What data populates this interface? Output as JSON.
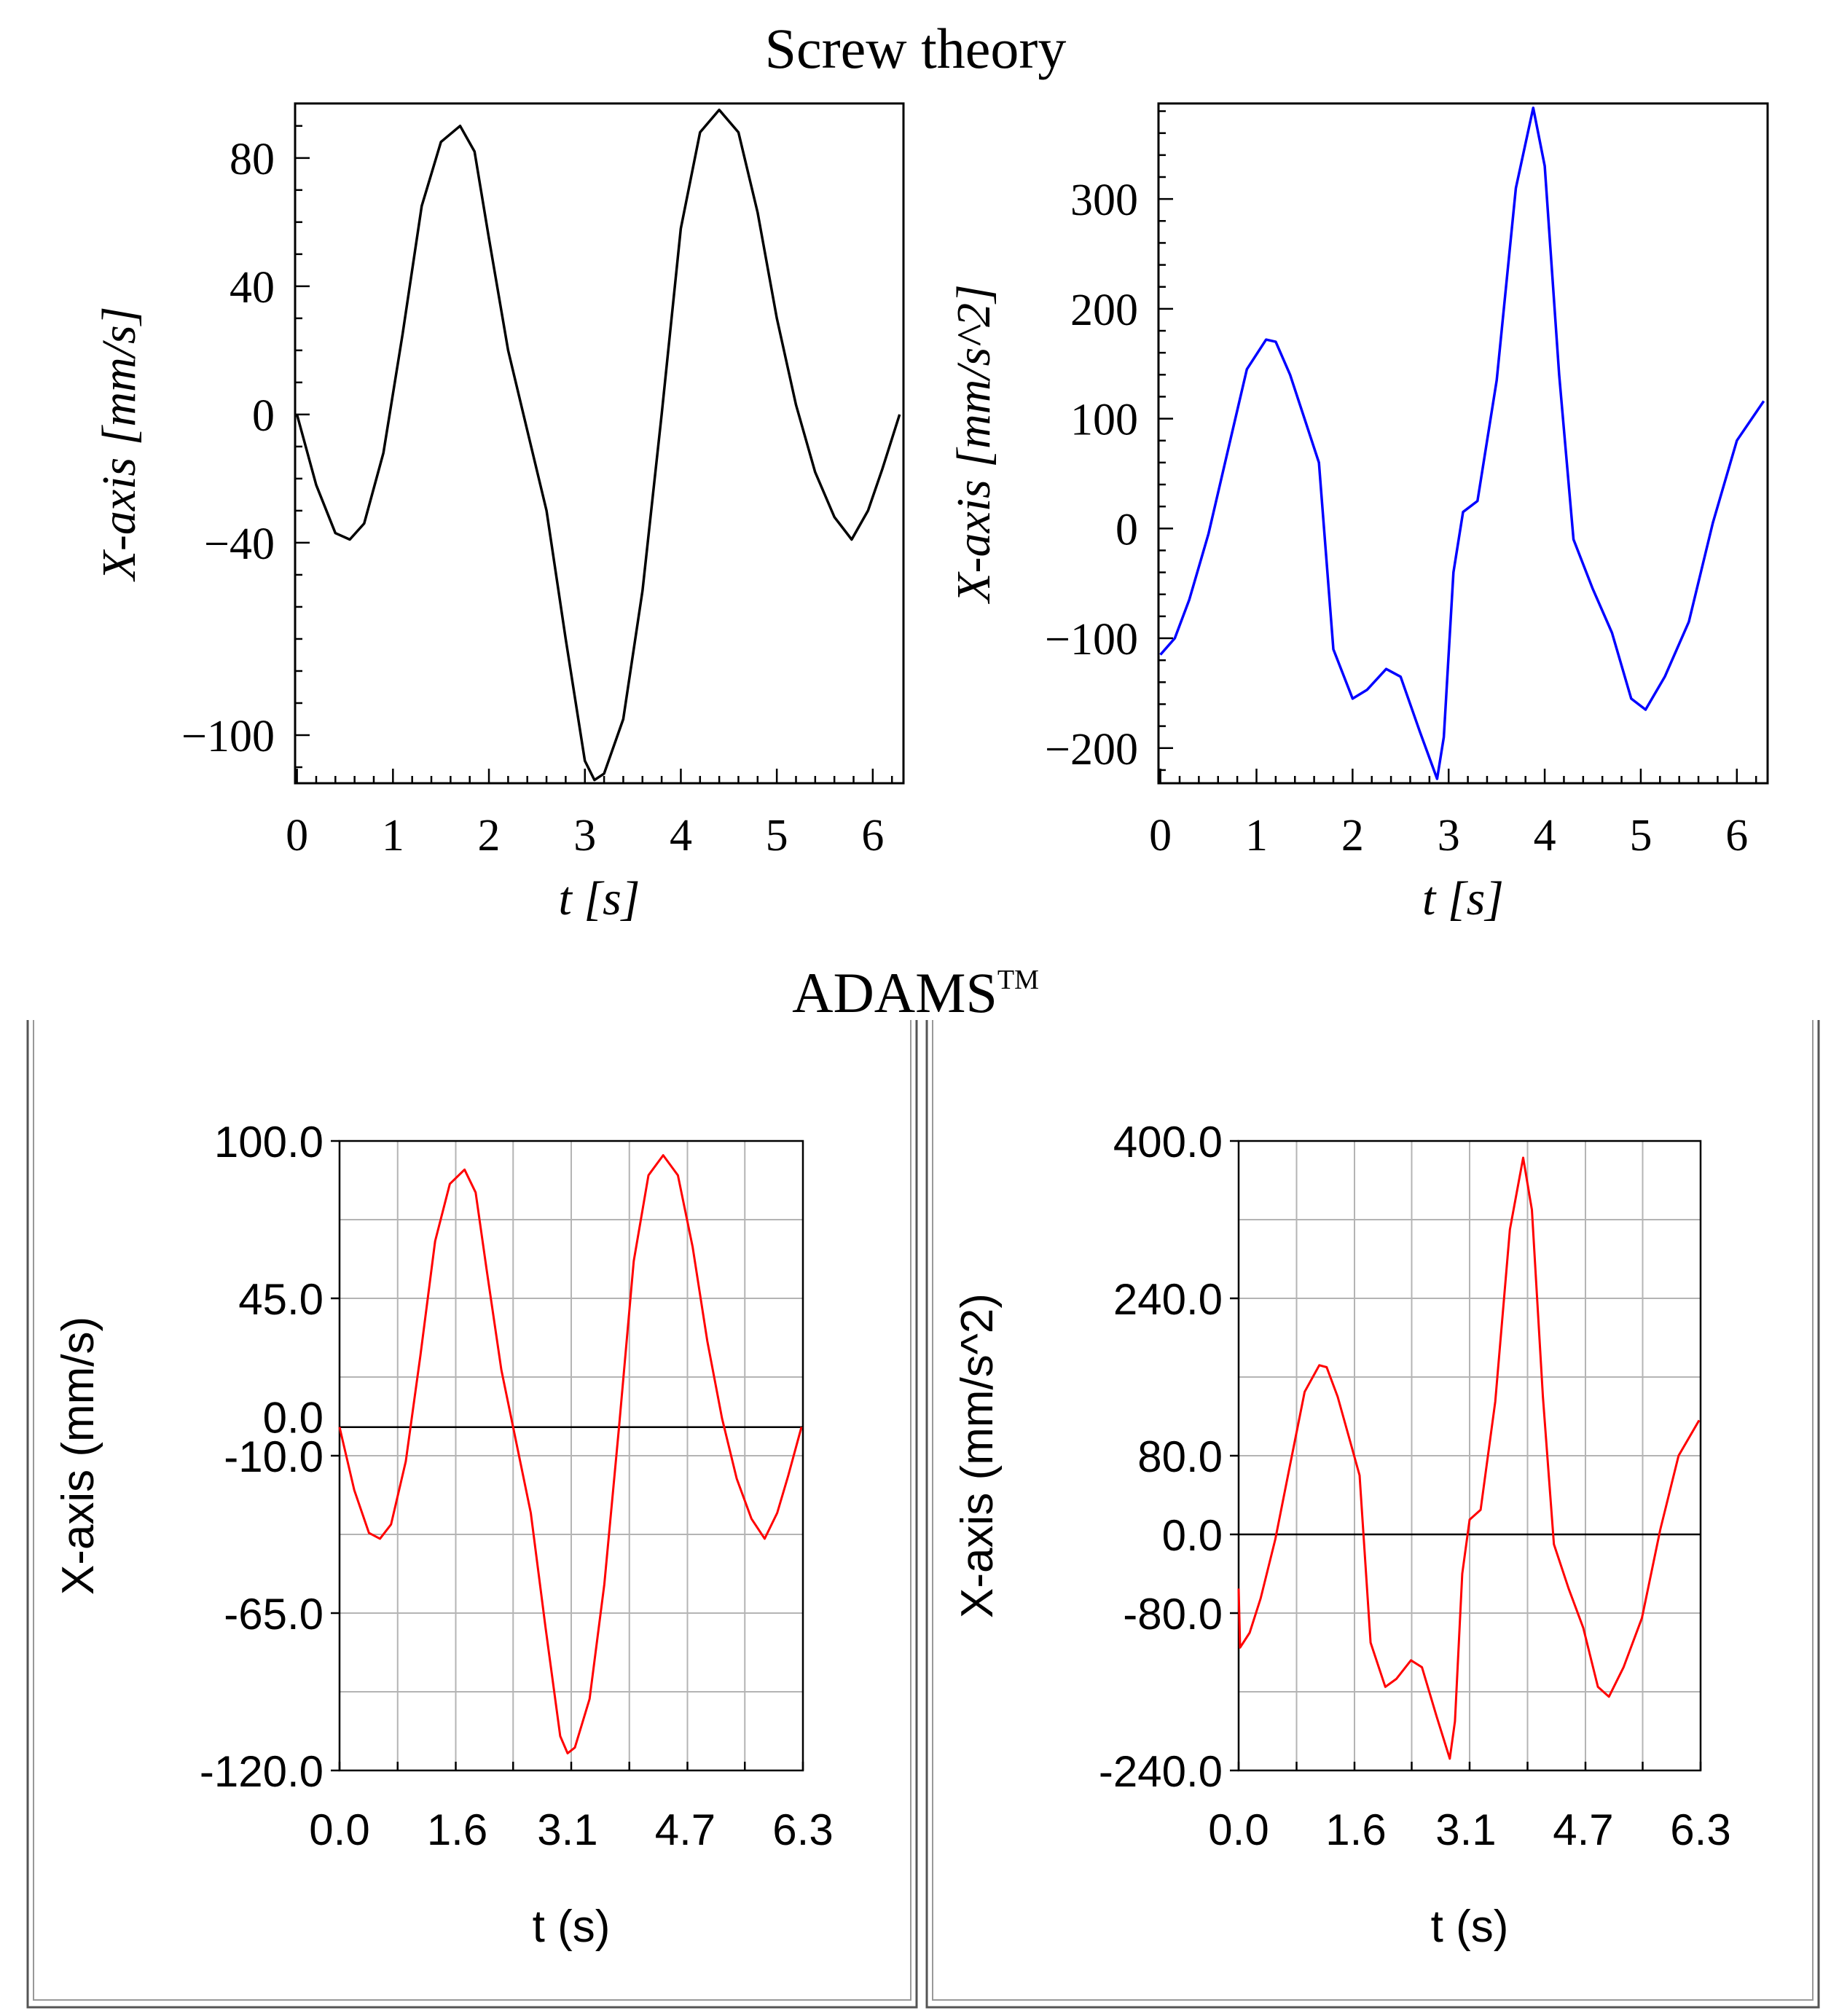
{
  "headings": {
    "screw": "Screw theory",
    "adams_main": "ADAMS",
    "adams_tm": "TM"
  },
  "colors": {
    "black_curve": "#000000",
    "blue_curve": "#0000ff",
    "red_curve": "#ff0000",
    "grid": "#b4b4b4",
    "axis": "#000000"
  },
  "chart_data": [
    {
      "id": "screw-velocity",
      "type": "line",
      "style": "serif",
      "title": "",
      "xlabel": "t [s]",
      "ylabel": "X-axis [mm/s]",
      "xlim": [
        -0.02,
        6.32
      ],
      "ylim": [
        -115,
        97
      ],
      "xticks": [
        0,
        1,
        2,
        3,
        4,
        5,
        6
      ],
      "xtick_labels": [
        "0",
        "1",
        "2",
        "3",
        "4",
        "5",
        "6"
      ],
      "yticks": [
        80,
        40,
        0,
        -40,
        -100
      ],
      "ytick_labels": [
        "80",
        "40",
        "0",
        "−40",
        "−100"
      ],
      "grid": false,
      "color": "#000000",
      "x": [
        0,
        0.2,
        0.4,
        0.55,
        0.7,
        0.9,
        1.1,
        1.3,
        1.5,
        1.7,
        1.85,
        2.0,
        2.2,
        2.4,
        2.6,
        2.8,
        3.0,
        3.1,
        3.2,
        3.4,
        3.6,
        3.8,
        4.0,
        4.2,
        4.4,
        4.6,
        4.8,
        5.0,
        5.2,
        5.4,
        5.6,
        5.78,
        5.95,
        6.1,
        6.28
      ],
      "y": [
        0,
        -22,
        -37,
        -39,
        -34,
        -12,
        25,
        65,
        85,
        90,
        82,
        55,
        20,
        -5,
        -30,
        -70,
        -108,
        -114,
        -112,
        -95,
        -55,
        0,
        58,
        88,
        95,
        88,
        63,
        30,
        3,
        -18,
        -32,
        -39,
        -30,
        -17,
        0
      ]
    },
    {
      "id": "screw-acceleration",
      "type": "line",
      "style": "serif",
      "title": "",
      "xlabel": "t [s]",
      "ylabel": "X-axis [mm/s^2]",
      "xlim": [
        -0.02,
        6.32
      ],
      "ylim": [
        -232,
        387
      ],
      "xticks": [
        0,
        1,
        2,
        3,
        4,
        5,
        6
      ],
      "xtick_labels": [
        "0",
        "1",
        "2",
        "3",
        "4",
        "5",
        "6"
      ],
      "yticks": [
        300,
        200,
        100,
        0,
        -100,
        -200
      ],
      "ytick_labels": [
        "300",
        "200",
        "100",
        "0",
        "−100",
        "−200"
      ],
      "grid": false,
      "color": "#0000ff",
      "x": [
        0,
        0.15,
        0.3,
        0.5,
        0.7,
        0.9,
        1.1,
        1.2,
        1.35,
        1.5,
        1.65,
        1.8,
        2.0,
        2.15,
        2.35,
        2.5,
        2.7,
        2.88,
        2.95,
        3.05,
        3.15,
        3.3,
        3.5,
        3.7,
        3.88,
        4.0,
        4.15,
        4.3,
        4.5,
        4.7,
        4.9,
        5.05,
        5.25,
        5.5,
        5.75,
        6.0,
        6.28
      ],
      "y": [
        -115,
        -100,
        -65,
        -5,
        70,
        145,
        172,
        170,
        140,
        100,
        60,
        -110,
        -155,
        -147,
        -128,
        -135,
        -185,
        -228,
        -190,
        -40,
        15,
        25,
        135,
        310,
        383,
        330,
        140,
        -10,
        -55,
        -95,
        -155,
        -165,
        -135,
        -85,
        5,
        80,
        116
      ]
    },
    {
      "id": "adams-velocity",
      "type": "line",
      "style": "sans",
      "title": "",
      "xlabel": "t (s)",
      "ylabel": "X-axis (mm/s)",
      "xlim": [
        0,
        6.3
      ],
      "ylim": [
        -120,
        100
      ],
      "xticks": [
        0,
        1.6,
        3.1,
        4.7,
        6.3
      ],
      "xtick_labels": [
        "0.0",
        "1.6",
        "3.1",
        "4.7",
        "6.3"
      ],
      "yticks": [
        100,
        45,
        -10,
        -65,
        -120
      ],
      "ytick_labels": [
        "100.0",
        "45.0",
        "-10.0",
        "-65.0",
        "-120.0"
      ],
      "extra_ytick_labels": [
        {
          "value": 0,
          "label": "0.0"
        }
      ],
      "xgrid": [
        0,
        0.79,
        1.58,
        2.36,
        3.15,
        3.94,
        4.73,
        5.51,
        6.3
      ],
      "ygrid": [
        100,
        72.5,
        45,
        17.5,
        -10,
        -37.5,
        -65,
        -92.5,
        -120
      ],
      "grid": true,
      "zero_line": true,
      "color": "#ff0000",
      "x": [
        0,
        0.2,
        0.4,
        0.55,
        0.7,
        0.9,
        1.1,
        1.3,
        1.5,
        1.7,
        1.85,
        2.0,
        2.2,
        2.4,
        2.6,
        2.8,
        3.0,
        3.1,
        3.2,
        3.4,
        3.6,
        3.8,
        4.0,
        4.2,
        4.4,
        4.6,
        4.8,
        5.0,
        5.2,
        5.4,
        5.6,
        5.78,
        5.95,
        6.1,
        6.28
      ],
      "y": [
        0,
        -22,
        -37,
        -39,
        -34,
        -12,
        25,
        65,
        85,
        90,
        82,
        55,
        20,
        -5,
        -30,
        -70,
        -108,
        -114,
        -112,
        -95,
        -55,
        0,
        58,
        88,
        95,
        88,
        63,
        30,
        3,
        -18,
        -32,
        -39,
        -30,
        -17,
        0
      ]
    },
    {
      "id": "adams-acceleration",
      "type": "line",
      "style": "sans",
      "title": "",
      "xlabel": "t (s)",
      "ylabel": "X-axis (mm/s^2)",
      "xlim": [
        0,
        6.3
      ],
      "ylim": [
        -240,
        400
      ],
      "xticks": [
        0,
        1.6,
        3.1,
        4.7,
        6.3
      ],
      "xtick_labels": [
        "0.0",
        "1.6",
        "3.1",
        "4.7",
        "6.3"
      ],
      "yticks": [
        400,
        240,
        80,
        0,
        -80,
        -240
      ],
      "ytick_labels": [
        "400.0",
        "240.0",
        "80.0",
        "0.0",
        "-80.0",
        "-240.0"
      ],
      "xgrid": [
        0,
        0.79,
        1.58,
        2.36,
        3.15,
        3.94,
        4.73,
        5.51,
        6.3
      ],
      "ygrid": [
        400,
        320,
        240,
        160,
        80,
        0,
        -80,
        -160,
        -240
      ],
      "grid": true,
      "zero_line": true,
      "color": "#ff0000",
      "x": [
        0,
        0.02,
        0.15,
        0.3,
        0.5,
        0.7,
        0.9,
        1.1,
        1.2,
        1.35,
        1.5,
        1.65,
        1.8,
        2.0,
        2.15,
        2.35,
        2.5,
        2.7,
        2.88,
        2.95,
        3.05,
        3.15,
        3.3,
        3.5,
        3.7,
        3.88,
        4.0,
        4.15,
        4.3,
        4.5,
        4.7,
        4.9,
        5.05,
        5.25,
        5.5,
        5.75,
        6.0,
        6.28
      ],
      "y": [
        -55,
        -115,
        -100,
        -65,
        -5,
        70,
        145,
        172,
        170,
        140,
        100,
        60,
        -110,
        -155,
        -147,
        -128,
        -135,
        -185,
        -228,
        -190,
        -40,
        15,
        25,
        135,
        310,
        383,
        330,
        140,
        -10,
        -55,
        -95,
        -155,
        -165,
        -135,
        -85,
        5,
        80,
        116
      ]
    }
  ]
}
